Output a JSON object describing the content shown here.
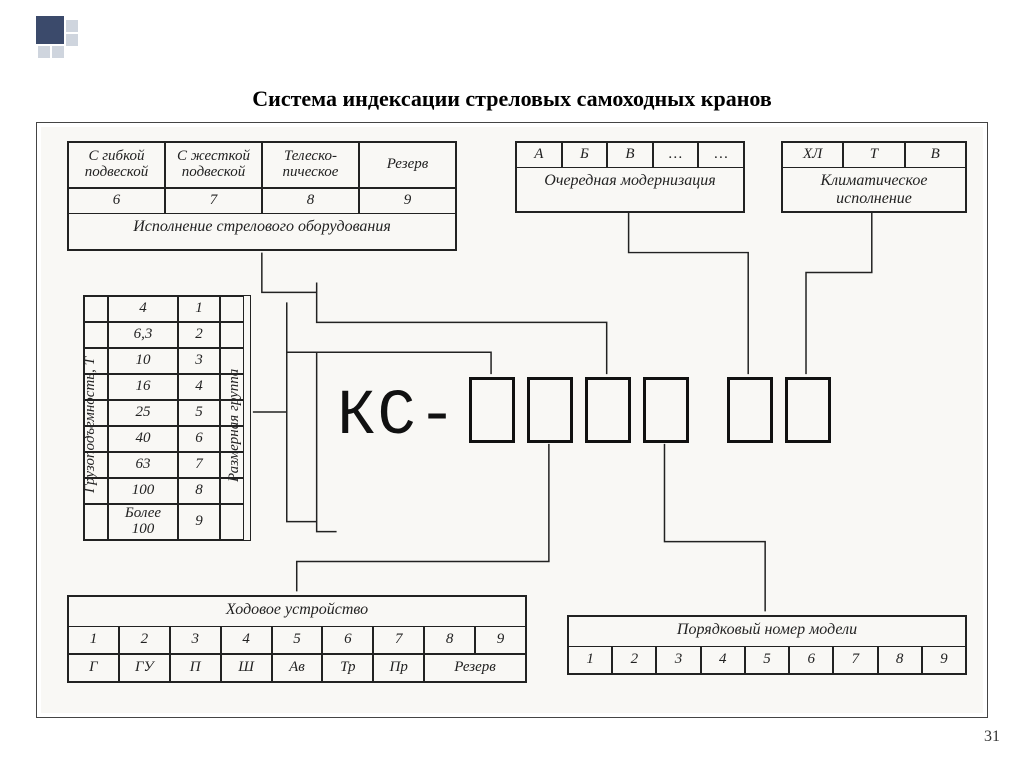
{
  "title": "Система индексации стреловых самоходных кранов",
  "page_number": "31",
  "colors": {
    "border": "#222",
    "paper": "#f9f8f5",
    "frame": "#444",
    "decor": "#3b4a6b"
  },
  "center": {
    "prefix": "КС-"
  },
  "boom": {
    "caption": "Исполнение стрелового оборудования",
    "headers": [
      "С гибкой подвеской",
      "С жесткой подвеской",
      "Телеско-пическое",
      "Резерв"
    ],
    "values": [
      "6",
      "7",
      "8",
      "9"
    ]
  },
  "modernization": {
    "caption": "Очередная модернизация",
    "cells": [
      "А",
      "Б",
      "В",
      "…",
      "…"
    ]
  },
  "climate": {
    "caption": "Климатическое исполнение",
    "cells": [
      "ХЛ",
      "Т",
      "В"
    ]
  },
  "capacity": {
    "left_label": "Грузоподъемность, Т",
    "right_label": "Размерная группа",
    "rows": [
      {
        "t": "4",
        "g": "1"
      },
      {
        "t": "6,3",
        "g": "2"
      },
      {
        "t": "10",
        "g": "3"
      },
      {
        "t": "16",
        "g": "4"
      },
      {
        "t": "25",
        "g": "5"
      },
      {
        "t": "40",
        "g": "6"
      },
      {
        "t": "63",
        "g": "7"
      },
      {
        "t": "100",
        "g": "8"
      },
      {
        "t": "Более 100",
        "g": "9"
      }
    ]
  },
  "chassis": {
    "caption": "Ходовое устройство",
    "numbers": [
      "1",
      "2",
      "3",
      "4",
      "5",
      "6",
      "7",
      "8",
      "9"
    ],
    "codes": [
      "Г",
      "ГУ",
      "П",
      "Ш",
      "Ав",
      "Тр",
      "Пр",
      "Резерв"
    ]
  },
  "model_no": {
    "caption": "Порядковый номер модели",
    "numbers": [
      "1",
      "2",
      "3",
      "4",
      "5",
      "6",
      "7",
      "8",
      "9"
    ]
  }
}
